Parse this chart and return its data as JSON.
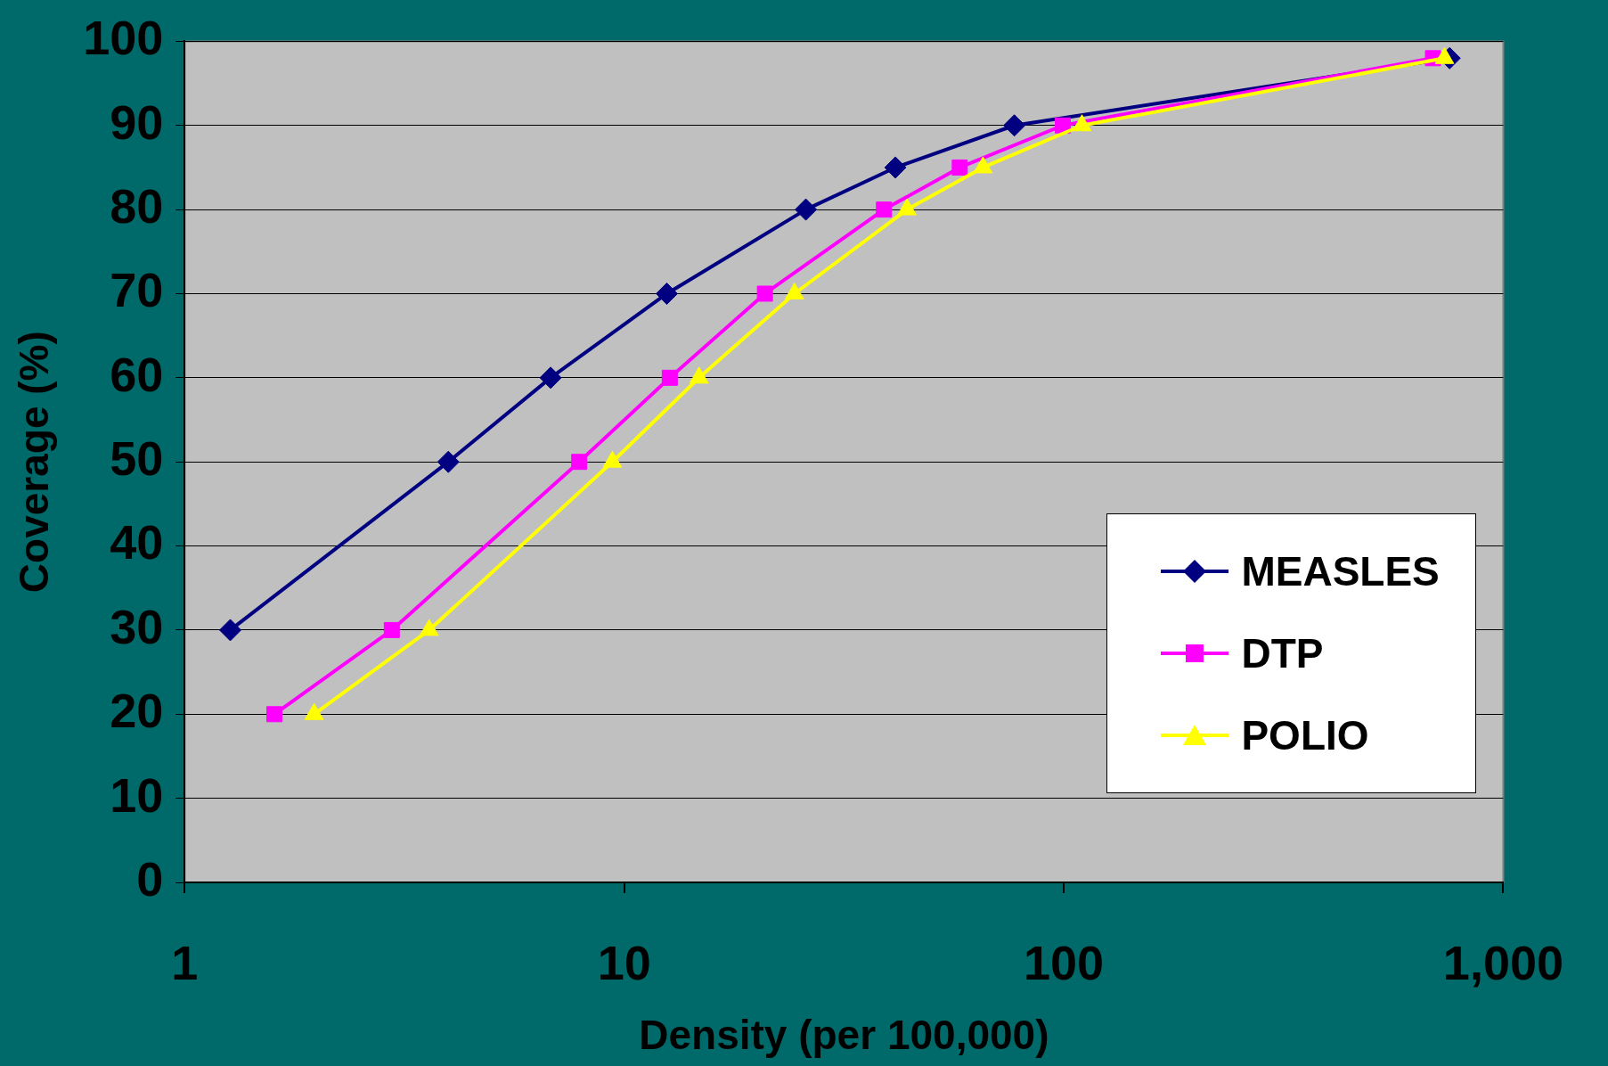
{
  "chart_data": {
    "type": "line",
    "xlabel": "Density (per 100,000)",
    "ylabel": "Coverage (%)",
    "log": "x",
    "xlim": [
      1,
      1000
    ],
    "xticks": [
      1,
      10,
      100,
      {
        "value": 1000,
        "label": "1,000"
      }
    ],
    "ylim": [
      0,
      100
    ],
    "yticks": [
      0,
      10,
      20,
      30,
      40,
      50,
      60,
      70,
      80,
      90,
      100
    ],
    "grid": "y",
    "legend": "right",
    "line_style": "solid",
    "series": [
      {
        "name": "MEASLES",
        "color": "#000080",
        "marker": "diamond",
        "x": [
          1.27,
          3.98,
          6.8,
          12.5,
          25.9,
          41.4,
          77.2,
          755
        ],
        "values": [
          30,
          50,
          60,
          70,
          80,
          85,
          90,
          98
        ]
      },
      {
        "name": "DTP",
        "color": "#ff00ff",
        "marker": "square",
        "x": [
          1.6,
          2.96,
          7.9,
          12.7,
          20.9,
          39,
          58,
          99.5,
          692
        ],
        "values": [
          20,
          30,
          50,
          60,
          70,
          80,
          85,
          90,
          98
        ]
      },
      {
        "name": "POLIO",
        "color": "#ffff00",
        "marker": "triangle",
        "x": [
          1.97,
          3.6,
          9.4,
          14.8,
          24.4,
          44,
          65.5,
          110,
          735
        ],
        "values": [
          20,
          30,
          50,
          60,
          70,
          80,
          85,
          90,
          98
        ]
      }
    ]
  }
}
